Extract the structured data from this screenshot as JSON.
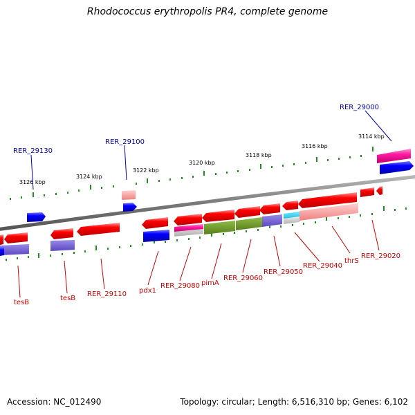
{
  "title": "Rhodococcus erythropolis PR4, complete genome",
  "footer": {
    "accession": "Accession: NC_012490",
    "summary": "Topology: circular; Length: 6,516,310 bp; Genes: 6,102"
  },
  "colors": {
    "backbone": "#808080",
    "ticks": "#228B22",
    "label_red": "#cc0000",
    "label_blue": "#0000aa"
  },
  "scale_labels": [
    "3126 kbp",
    "3124 kbp",
    "3122 kbp",
    "3120 kbp",
    "3118 kbp",
    "3116 kbp",
    "3114 kbp"
  ],
  "gene_labels": [
    {
      "name": "RER_29130",
      "color": "blue"
    },
    {
      "name": "RER_29100",
      "color": "blue"
    },
    {
      "name": "RER_29000",
      "color": "blue"
    },
    {
      "name": "tesB",
      "color": "red"
    },
    {
      "name": "tesB",
      "color": "red"
    },
    {
      "name": "RER_29110",
      "color": "red"
    },
    {
      "name": "pdx1",
      "color": "red"
    },
    {
      "name": "RER_29080",
      "color": "red"
    },
    {
      "name": "pimA",
      "color": "red"
    },
    {
      "name": "RER_29060",
      "color": "red"
    },
    {
      "name": "RER_29050",
      "color": "red"
    },
    {
      "name": "RER_29040",
      "color": "red"
    },
    {
      "name": "thrS",
      "color": "red"
    },
    {
      "name": "RER_29020",
      "color": "red"
    }
  ]
}
